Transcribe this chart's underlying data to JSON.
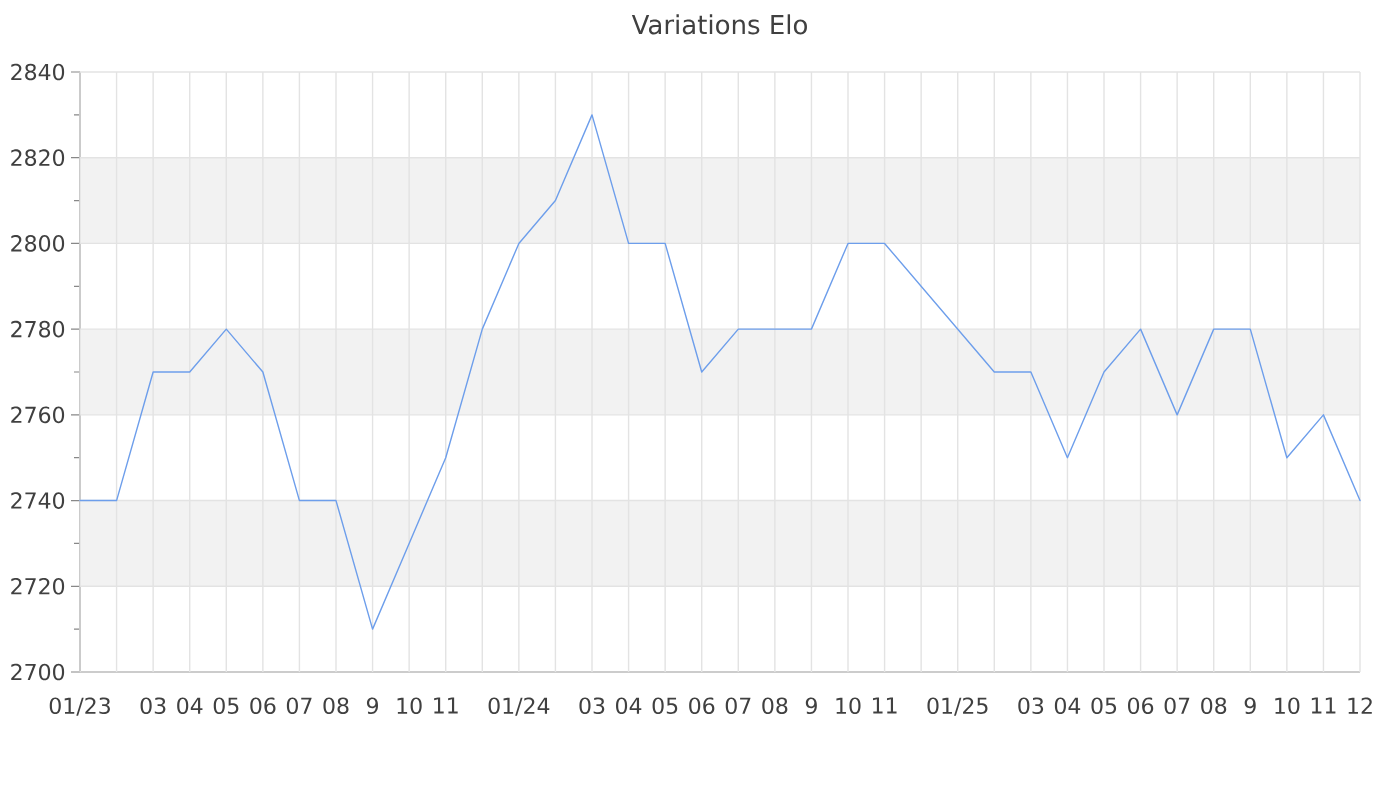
{
  "chart_data": {
    "type": "line",
    "title": "Variations Elo",
    "categories": [
      "01/23",
      null,
      "03",
      "04",
      "05",
      "06",
      "07",
      "08",
      "9",
      "10",
      "11",
      null,
      "01/24",
      null,
      "03",
      "04",
      "05",
      "06",
      "07",
      "08",
      "9",
      "10",
      "11",
      null,
      "01/25",
      null,
      "03",
      "04",
      "05",
      "06",
      "07",
      "08",
      "9",
      "10",
      "11",
      "12"
    ],
    "values": [
      2740,
      2740,
      2770,
      2770,
      2780,
      2770,
      2740,
      2740,
      2710,
      2730,
      2750,
      2780,
      2800,
      2810,
      2830,
      2800,
      2800,
      2770,
      2780,
      2780,
      2780,
      2800,
      2800,
      2790,
      2780,
      2770,
      2770,
      2750,
      2770,
      2780,
      2760,
      2780,
      2780,
      2750,
      2760,
      2740
    ],
    "color": "#6d9eeb",
    "ylim": [
      2700,
      2840
    ],
    "yticks": [
      2700,
      {
        "value": 2710,
        "label": null
      },
      2720,
      {
        "value": 2730,
        "label": null
      },
      2740,
      {
        "value": 2750,
        "label": null
      },
      2760,
      {
        "value": 2770,
        "label": null
      },
      2780,
      {
        "value": 2790,
        "label": null
      },
      2800,
      {
        "value": 2810,
        "label": null
      },
      2820,
      {
        "value": 2830,
        "label": null
      },
      2840
    ],
    "grid": true,
    "bands": [
      {
        "axis": "y",
        "from": 2720,
        "to": 2740,
        "color": "#f2f2f2"
      },
      {
        "axis": "y",
        "from": 2760,
        "to": 2780,
        "color": "#f2f2f2"
      },
      {
        "axis": "y",
        "from": 2800,
        "to": 2820,
        "color": "#f2f2f2"
      }
    ]
  }
}
